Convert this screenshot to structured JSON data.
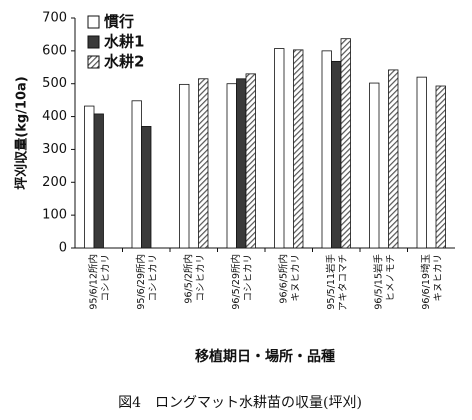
{
  "chart_data": {
    "type": "bar",
    "y_label": "坪刈収量(kg/10a)",
    "x_label": "移植期日・場所・品種",
    "caption": "図4　ロングマット水耕苗の収量(坪刈)",
    "categories": [
      [
        "95/6/12所内",
        "コシヒカリ"
      ],
      [
        "95/6/29所内",
        "コシヒカリ"
      ],
      [
        "96/5/2所内",
        "コシヒカリ"
      ],
      [
        "96/5/29所内",
        "コシヒカリ"
      ],
      [
        "96/6/5所内",
        "キヌヒカリ"
      ],
      [
        "95/5/11岩手",
        "アキタコマチ"
      ],
      [
        "96/5/15岩手",
        "ヒメノモチ"
      ],
      [
        "96/6/19埼玉",
        "キヌヒカリ"
      ]
    ],
    "series": [
      {
        "name": "慣行",
        "color": "#ffffff",
        "values": [
          432,
          448,
          498,
          500,
          607,
          600,
          502,
          520
        ]
      },
      {
        "name": "水耕1",
        "color": "#3a3a3a",
        "values": [
          408,
          370,
          null,
          515,
          null,
          568,
          null,
          null
        ]
      },
      {
        "name": "水耕2",
        "color": "#555555",
        "pattern": "hatch",
        "values": [
          null,
          null,
          515,
          530,
          603,
          637,
          542,
          493
        ]
      }
    ],
    "ylim": [
      0,
      700
    ],
    "yticks": [
      0,
      100,
      200,
      300,
      400,
      500,
      600,
      700
    ],
    "grid": false
  }
}
